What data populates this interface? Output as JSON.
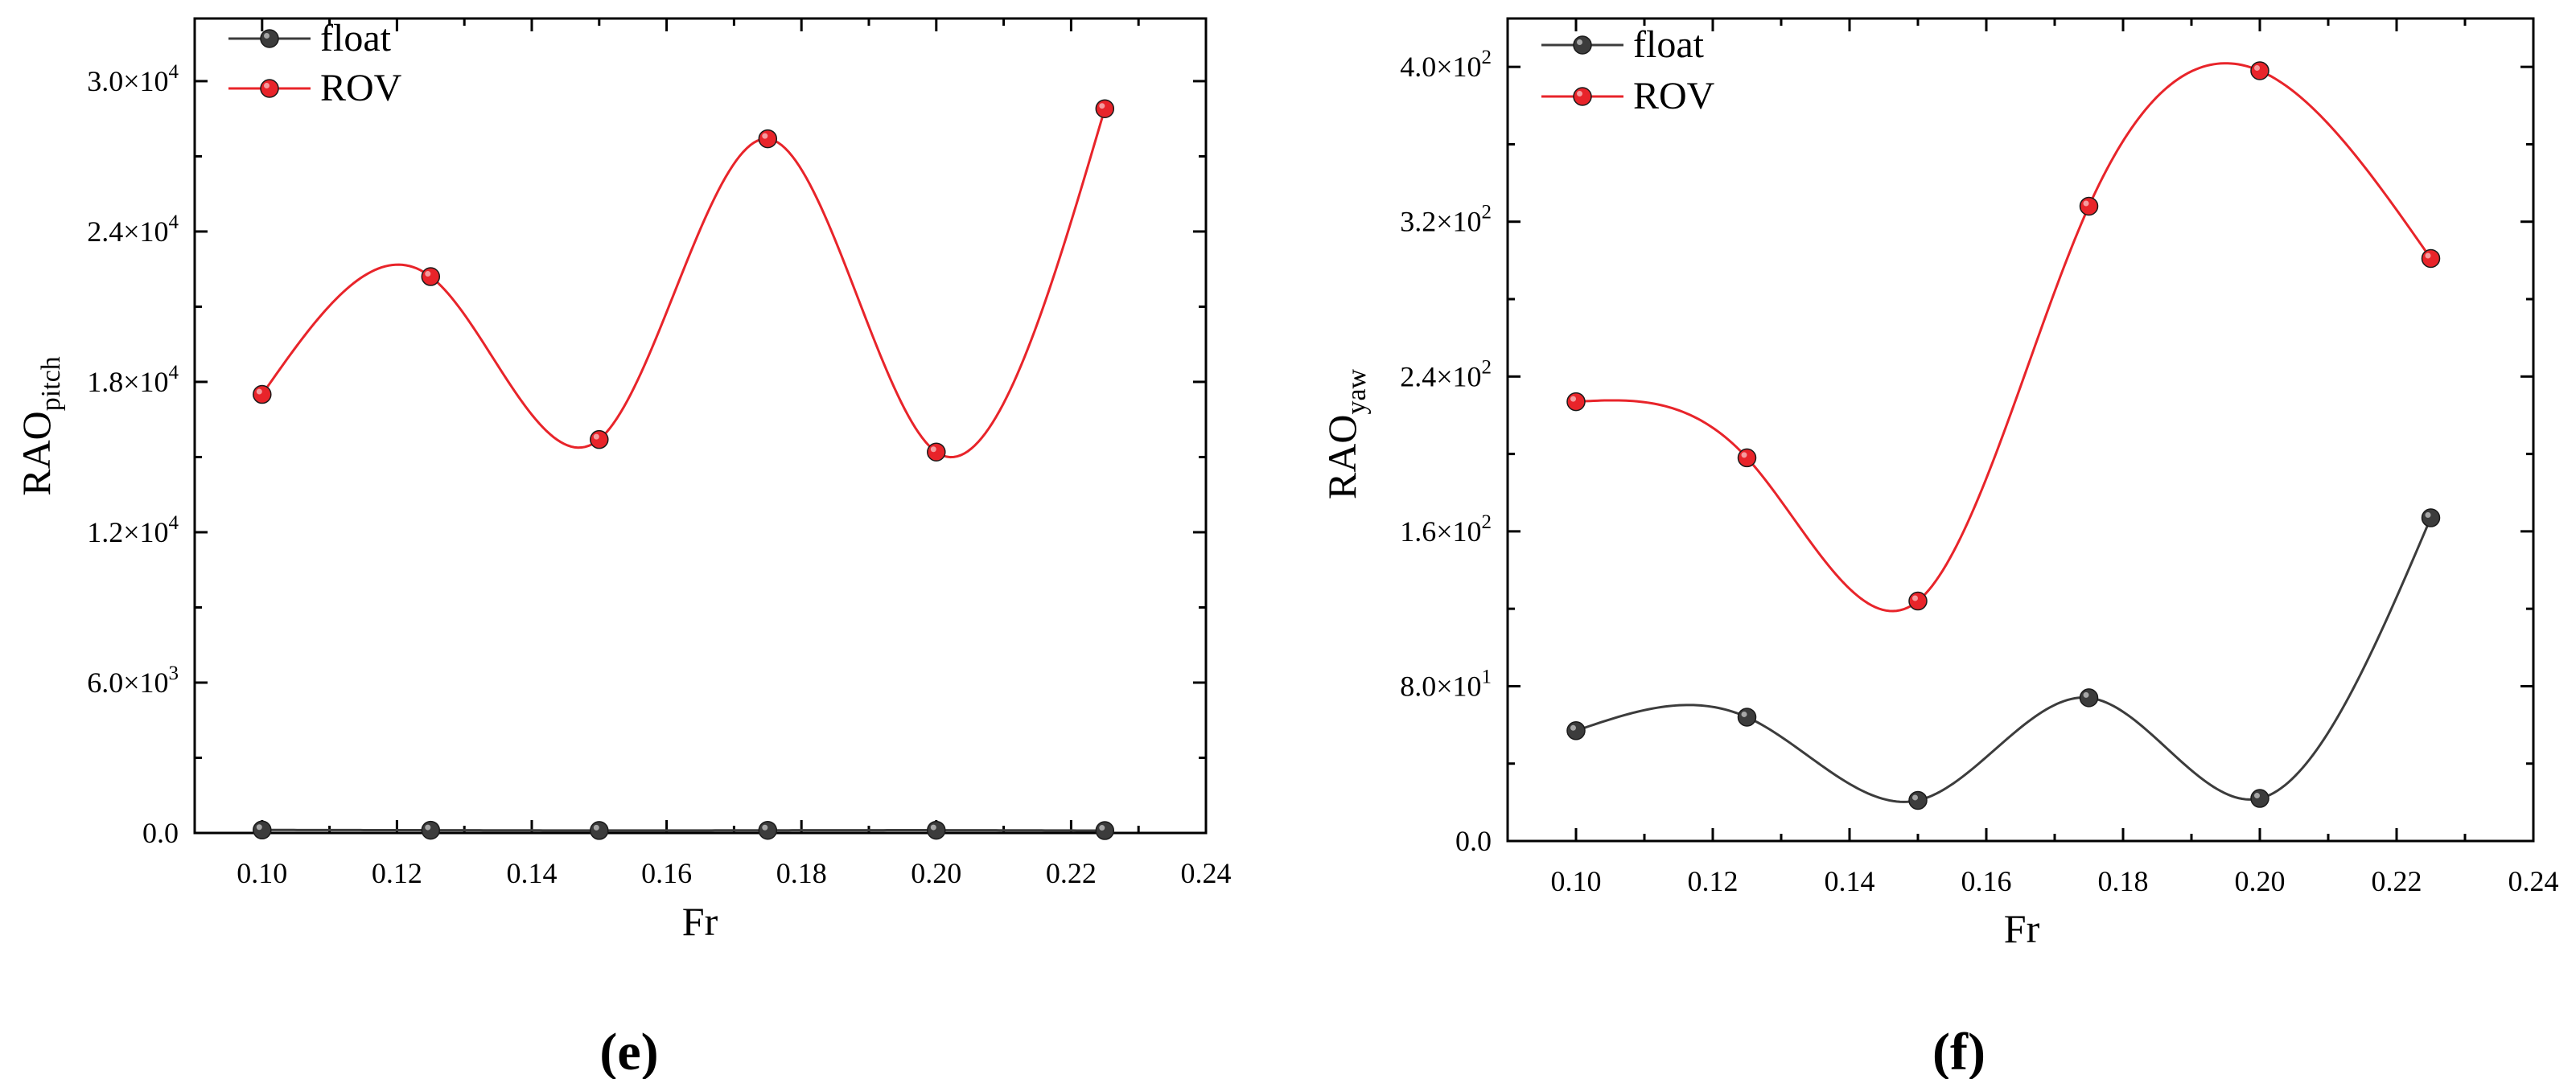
{
  "figure": {
    "caption_e": "e",
    "caption_f": "f"
  },
  "chart_data": [
    {
      "type": "line",
      "panel": "e",
      "title": "",
      "xlabel": "Fr",
      "ylabel_main": "RAO",
      "ylabel_sub": "pitch",
      "xlim": [
        0.09,
        0.24
      ],
      "ylim": [
        0,
        32500
      ],
      "x_ticks": [
        0.1,
        0.12,
        0.14,
        0.16,
        0.18,
        0.2,
        0.22,
        0.24
      ],
      "x_tick_labels": [
        "0.10",
        "0.12",
        "0.14",
        "0.16",
        "0.18",
        "0.20",
        "0.22",
        "0.24"
      ],
      "y_ticks": [
        0,
        6000,
        12000,
        18000,
        24000,
        30000
      ],
      "y_tick_mantissa": [
        "0.0",
        "6.0×10",
        "1.2×10",
        "1.8×10",
        "2.4×10",
        "3.0×10"
      ],
      "y_tick_exponent": [
        "",
        "3",
        "4",
        "4",
        "4",
        "4"
      ],
      "grid": false,
      "legend_position": "top-left",
      "x": [
        0.1,
        0.125,
        0.15,
        0.175,
        0.2,
        0.225
      ],
      "series": [
        {
          "name": "float",
          "color": "#3c3c3c",
          "values": [
            120,
            110,
            100,
            105,
            110,
            95
          ]
        },
        {
          "name": "ROV",
          "color": "#e8242a",
          "values": [
            17500,
            22200,
            15700,
            27700,
            15200,
            28900
          ]
        }
      ]
    },
    {
      "type": "line",
      "panel": "f",
      "title": "",
      "xlabel": "Fr",
      "ylabel_main": "RAO",
      "ylabel_sub": "yaw",
      "xlim": [
        0.09,
        0.24
      ],
      "ylim": [
        0,
        425
      ],
      "x_ticks": [
        0.1,
        0.12,
        0.14,
        0.16,
        0.18,
        0.2,
        0.22,
        0.24
      ],
      "x_tick_labels": [
        "0.10",
        "0.12",
        "0.14",
        "0.16",
        "0.18",
        "0.20",
        "0.22",
        "0.24"
      ],
      "y_ticks": [
        0,
        80,
        160,
        240,
        320,
        400
      ],
      "y_tick_mantissa": [
        "0.0",
        "8.0×10",
        "1.6×10",
        "2.4×10",
        "3.2×10",
        "4.0×10"
      ],
      "y_tick_exponent": [
        "",
        "1",
        "2",
        "2",
        "2",
        "2"
      ],
      "grid": false,
      "legend_position": "top-left",
      "x": [
        0.1,
        0.125,
        0.15,
        0.175,
        0.2,
        0.225
      ],
      "series": [
        {
          "name": "float",
          "color": "#3c3c3c",
          "values": [
            57,
            64,
            21,
            74,
            22,
            167
          ]
        },
        {
          "name": "ROV",
          "color": "#e8242a",
          "values": [
            227,
            198,
            124,
            328,
            398,
            301
          ]
        }
      ]
    }
  ]
}
